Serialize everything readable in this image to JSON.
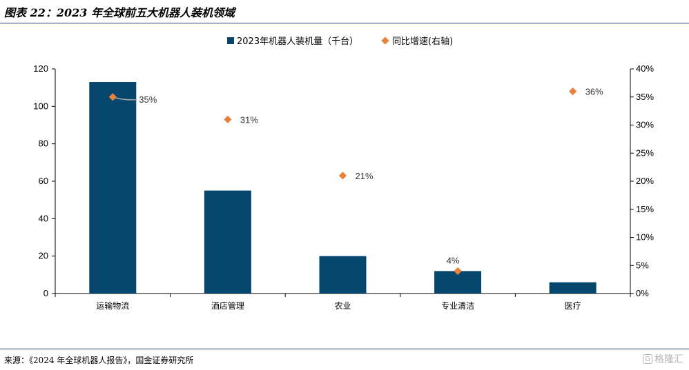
{
  "header": {
    "title": "图表 22：2023 年全球前五大机器人装机领域"
  },
  "footer": {
    "source": "来源：《2024 年全球机器人报告》，国金证券研究所",
    "watermark": "格隆汇"
  },
  "colors": {
    "bar": "#07476d",
    "marker": "#e8813a",
    "rule": "#1f3c73"
  },
  "chart_data": {
    "type": "bar",
    "categories": [
      "运输物流",
      "酒店管理",
      "农业",
      "专业清洁",
      "医疗"
    ],
    "series": [
      {
        "name": "2023年机器人装机量（千台）",
        "type": "bar",
        "axis": "left",
        "values": [
          113,
          55,
          20,
          12,
          6
        ]
      },
      {
        "name": "同比增速(右轴)",
        "type": "scatter",
        "axis": "right",
        "values": [
          35,
          31,
          21,
          4,
          36
        ],
        "labels": [
          "35%",
          "31%",
          "21%",
          "4%",
          "36%"
        ]
      }
    ],
    "y_left": {
      "ylim": [
        0,
        120
      ],
      "ticks": [
        0,
        20,
        40,
        60,
        80,
        100,
        120
      ]
    },
    "y_right": {
      "ylim": [
        0,
        40
      ],
      "ticks": [
        "0%",
        "5%",
        "10%",
        "15%",
        "20%",
        "25%",
        "30%",
        "35%",
        "40%"
      ]
    },
    "legend": "top-center",
    "grid": false
  }
}
